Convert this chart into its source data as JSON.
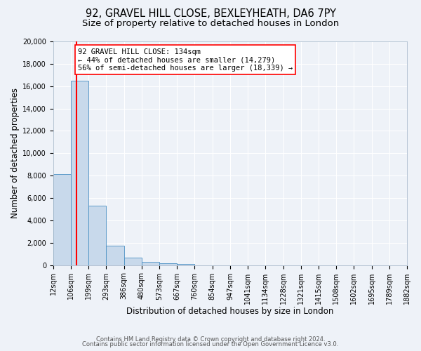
{
  "title": "92, GRAVEL HILL CLOSE, BEXLEYHEATH, DA6 7PY",
  "subtitle": "Size of property relative to detached houses in London",
  "xlabel": "Distribution of detached houses by size in London",
  "ylabel": "Number of detached properties",
  "bar_values": [
    8150,
    16500,
    5300,
    1750,
    650,
    280,
    150,
    120,
    0,
    0,
    0,
    0,
    0,
    0,
    0,
    0,
    0,
    0,
    0,
    0
  ],
  "bar_labels": [
    "12sqm",
    "106sqm",
    "199sqm",
    "293sqm",
    "386sqm",
    "480sqm",
    "573sqm",
    "667sqm",
    "760sqm",
    "854sqm",
    "947sqm",
    "1041sqm",
    "1134sqm",
    "1228sqm",
    "1321sqm",
    "1415sqm",
    "1508sqm",
    "1602sqm",
    "1695sqm",
    "1789sqm",
    "1882sqm"
  ],
  "ylim": [
    0,
    20000
  ],
  "yticks": [
    0,
    2000,
    4000,
    6000,
    8000,
    10000,
    12000,
    14000,
    16000,
    18000,
    20000
  ],
  "bar_color": "#c8d9eb",
  "bar_edge_color": "#4a90c4",
  "annotation_box_text": "92 GRAVEL HILL CLOSE: 134sqm\n← 44% of detached houses are smaller (14,279)\n56% of semi-detached houses are larger (18,339) →",
  "footer_line1": "Contains HM Land Registry data © Crown copyright and database right 2024.",
  "footer_line2": "Contains public sector information licensed under the Open Government Licence v3.0.",
  "background_color": "#eef2f8",
  "grid_color": "#ffffff",
  "title_fontsize": 10.5,
  "subtitle_fontsize": 9.5,
  "axis_label_fontsize": 8.5,
  "tick_fontsize": 7,
  "footer_fontsize": 6,
  "annotation_fontsize": 7.5
}
